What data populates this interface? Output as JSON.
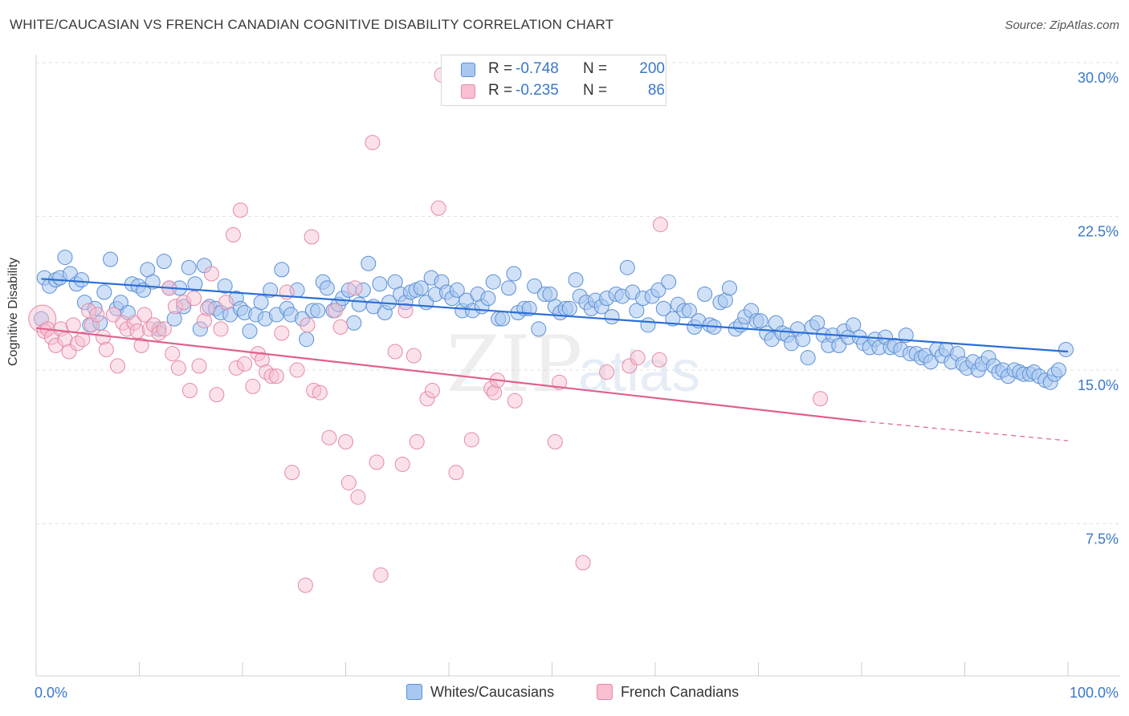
{
  "title": "WHITE/CAUCASIAN VS FRENCH CANADIAN COGNITIVE DISABILITY CORRELATION CHART",
  "source": "Source: ZipAtlas.com",
  "watermark": {
    "zip": "ZIP",
    "atlas": "atlas"
  },
  "legend": {
    "r_label": "R =",
    "n_label": "N =",
    "series": [
      {
        "name": "Whites/Caucasians",
        "r": "-0.748",
        "n": "200",
        "fill": "#a9c8f0",
        "stroke": "#5b8fd6",
        "line": "#2a6fd6"
      },
      {
        "name": "French Canadians",
        "r": "-0.235",
        "n": "86",
        "fill": "#f7bfd0",
        "stroke": "#e58aa6",
        "line": "#e0608e"
      }
    ]
  },
  "chart_data": {
    "type": "scatter",
    "title": "WHITE/CAUCASIAN VS FRENCH CANADIAN COGNITIVE DISABILITY CORRELATION CHART",
    "xlabel": "",
    "ylabel": "Cognitive Disability",
    "xlim": [
      0,
      100
    ],
    "ylim": [
      0,
      31
    ],
    "x_tick_labels": [
      "0.0%",
      "100.0%"
    ],
    "y_ticks": [
      7.5,
      15.0,
      22.5,
      30.0
    ],
    "y_tick_labels": [
      "7.5%",
      "15.0%",
      "22.5%",
      "30.0%"
    ],
    "grid": true,
    "legend_position": "top-center",
    "series": [
      {
        "name": "Whites/Caucasians",
        "points": [
          [
            0.5,
            17.5
          ],
          [
            0.8,
            19.5
          ],
          [
            1.3,
            19.1
          ],
          [
            1.9,
            19.4
          ],
          [
            2.3,
            19.5
          ],
          [
            2.8,
            20.5
          ],
          [
            3.3,
            19.7
          ],
          [
            3.9,
            19.2
          ],
          [
            4.4,
            19.4
          ],
          [
            4.7,
            18.3
          ],
          [
            5.2,
            17.2
          ],
          [
            5.7,
            18.0
          ],
          [
            6.2,
            17.3
          ],
          [
            6.6,
            18.8
          ],
          [
            7.2,
            20.4
          ],
          [
            7.8,
            18.0
          ],
          [
            8.2,
            18.3
          ],
          [
            8.9,
            17.8
          ],
          [
            9.3,
            19.2
          ],
          [
            9.9,
            19.1
          ],
          [
            10.4,
            18.9
          ],
          [
            10.8,
            19.9
          ],
          [
            11.3,
            19.3
          ],
          [
            11.9,
            17.0
          ],
          [
            12.4,
            20.3
          ],
          [
            12.9,
            19.0
          ],
          [
            13.4,
            17.5
          ],
          [
            13.9,
            19.0
          ],
          [
            14.3,
            18.1
          ],
          [
            14.8,
            20.0
          ],
          [
            15.4,
            19.2
          ],
          [
            15.9,
            17.0
          ],
          [
            16.3,
            20.1
          ],
          [
            16.8,
            18.1
          ],
          [
            17.4,
            18.0
          ],
          [
            17.9,
            17.8
          ],
          [
            18.3,
            19.1
          ],
          [
            18.8,
            17.7
          ],
          [
            19.4,
            18.5
          ],
          [
            19.8,
            18.0
          ],
          [
            20.2,
            17.8
          ],
          [
            20.7,
            16.9
          ],
          [
            21.3,
            17.7
          ],
          [
            21.8,
            18.3
          ],
          [
            22.2,
            17.5
          ],
          [
            22.7,
            18.9
          ],
          [
            23.3,
            17.7
          ],
          [
            23.8,
            19.9
          ],
          [
            24.3,
            18.0
          ],
          [
            24.7,
            17.7
          ],
          [
            25.3,
            18.9
          ],
          [
            25.8,
            17.5
          ],
          [
            26.2,
            16.5
          ],
          [
            26.8,
            17.9
          ],
          [
            27.3,
            17.9
          ],
          [
            27.8,
            19.3
          ],
          [
            28.2,
            19.0
          ],
          [
            28.8,
            17.9
          ],
          [
            29.3,
            18.2
          ],
          [
            29.7,
            18.5
          ],
          [
            30.3,
            18.9
          ],
          [
            30.8,
            17.3
          ],
          [
            31.3,
            18.2
          ],
          [
            31.7,
            18.9
          ],
          [
            32.2,
            20.2
          ],
          [
            32.7,
            18.1
          ],
          [
            33.3,
            19.2
          ],
          [
            33.8,
            17.8
          ],
          [
            34.2,
            18.3
          ],
          [
            34.8,
            19.3
          ],
          [
            35.3,
            18.7
          ],
          [
            35.8,
            18.3
          ],
          [
            36.3,
            18.8
          ],
          [
            36.8,
            18.9
          ],
          [
            37.3,
            19.0
          ],
          [
            37.8,
            18.3
          ],
          [
            38.3,
            19.5
          ],
          [
            38.7,
            18.7
          ],
          [
            39.3,
            19.3
          ],
          [
            39.8,
            18.8
          ],
          [
            40.3,
            18.5
          ],
          [
            40.8,
            18.9
          ],
          [
            41.3,
            17.9
          ],
          [
            41.7,
            18.4
          ],
          [
            42.3,
            17.9
          ],
          [
            42.8,
            18.7
          ],
          [
            43.2,
            18.1
          ],
          [
            43.8,
            18.5
          ],
          [
            44.3,
            19.3
          ],
          [
            44.8,
            17.5
          ],
          [
            45.2,
            17.5
          ],
          [
            45.8,
            19.0
          ],
          [
            46.3,
            19.7
          ],
          [
            46.7,
            17.8
          ],
          [
            47.3,
            18.0
          ],
          [
            47.8,
            18.0
          ],
          [
            48.3,
            19.1
          ],
          [
            48.7,
            17.0
          ],
          [
            49.3,
            18.7
          ],
          [
            49.8,
            18.7
          ],
          [
            50.3,
            18.1
          ],
          [
            50.8,
            17.8
          ],
          [
            51.3,
            18.0
          ],
          [
            51.7,
            18.0
          ],
          [
            52.3,
            19.4
          ],
          [
            52.7,
            18.6
          ],
          [
            53.3,
            18.3
          ],
          [
            53.8,
            18.0
          ],
          [
            54.2,
            18.4
          ],
          [
            54.8,
            18.1
          ],
          [
            55.3,
            18.5
          ],
          [
            55.8,
            17.6
          ],
          [
            56.2,
            18.7
          ],
          [
            56.8,
            18.6
          ],
          [
            57.3,
            20.0
          ],
          [
            57.8,
            18.8
          ],
          [
            58.2,
            17.9
          ],
          [
            58.8,
            18.5
          ],
          [
            59.3,
            17.2
          ],
          [
            59.7,
            18.6
          ],
          [
            60.3,
            18.9
          ],
          [
            60.8,
            18.0
          ],
          [
            61.3,
            19.3
          ],
          [
            61.7,
            17.5
          ],
          [
            62.2,
            18.2
          ],
          [
            62.8,
            17.9
          ],
          [
            63.3,
            17.9
          ],
          [
            63.8,
            17.1
          ],
          [
            64.2,
            17.4
          ],
          [
            64.8,
            18.7
          ],
          [
            65.3,
            17.2
          ],
          [
            65.7,
            17.1
          ],
          [
            66.3,
            18.3
          ],
          [
            66.8,
            18.4
          ],
          [
            67.2,
            19.0
          ],
          [
            67.8,
            17.0
          ],
          [
            68.3,
            17.2
          ],
          [
            68.7,
            17.6
          ],
          [
            69.3,
            17.9
          ],
          [
            69.8,
            17.4
          ],
          [
            70.2,
            17.4
          ],
          [
            70.8,
            16.8
          ],
          [
            71.3,
            16.5
          ],
          [
            71.7,
            17.3
          ],
          [
            72.3,
            16.8
          ],
          [
            72.8,
            16.7
          ],
          [
            73.2,
            16.3
          ],
          [
            73.8,
            17.0
          ],
          [
            74.3,
            16.5
          ],
          [
            74.8,
            15.6
          ],
          [
            75.2,
            17.1
          ],
          [
            75.7,
            17.3
          ],
          [
            76.3,
            16.7
          ],
          [
            76.8,
            16.2
          ],
          [
            77.2,
            16.7
          ],
          [
            77.8,
            16.2
          ],
          [
            78.3,
            16.9
          ],
          [
            78.7,
            16.6
          ],
          [
            79.2,
            17.2
          ],
          [
            79.8,
            16.6
          ],
          [
            80.2,
            16.3
          ],
          [
            80.8,
            16.1
          ],
          [
            81.3,
            16.5
          ],
          [
            81.7,
            16.1
          ],
          [
            82.3,
            16.6
          ],
          [
            82.8,
            16.1
          ],
          [
            83.2,
            16.2
          ],
          [
            83.8,
            16.0
          ],
          [
            84.3,
            16.7
          ],
          [
            84.7,
            15.8
          ],
          [
            85.3,
            15.8
          ],
          [
            85.8,
            15.6
          ],
          [
            86.2,
            15.7
          ],
          [
            86.7,
            15.4
          ],
          [
            87.3,
            16.0
          ],
          [
            87.8,
            15.7
          ],
          [
            88.2,
            16.0
          ],
          [
            88.7,
            15.4
          ],
          [
            89.3,
            15.8
          ],
          [
            89.8,
            15.3
          ],
          [
            90.2,
            15.1
          ],
          [
            90.8,
            15.4
          ],
          [
            91.3,
            15.0
          ],
          [
            91.7,
            15.3
          ],
          [
            92.3,
            15.6
          ],
          [
            92.8,
            15.2
          ],
          [
            93.3,
            14.9
          ],
          [
            93.7,
            15.0
          ],
          [
            94.2,
            14.7
          ],
          [
            94.8,
            15.0
          ],
          [
            95.3,
            14.9
          ],
          [
            95.7,
            14.8
          ],
          [
            96.3,
            14.8
          ],
          [
            96.7,
            14.9
          ],
          [
            97.2,
            14.7
          ],
          [
            97.8,
            14.5
          ],
          [
            98.3,
            14.4
          ],
          [
            98.7,
            14.8
          ],
          [
            99.1,
            15.0
          ],
          [
            99.8,
            16.0
          ]
        ],
        "trend": {
          "x0": 0.5,
          "y0": 19.45,
          "x1": 100.0,
          "y1": 15.9
        }
      },
      {
        "name": "French Canadians",
        "points": [
          [
            0.6,
            17.5
          ],
          [
            0.8,
            16.9
          ],
          [
            1.1,
            17.0
          ],
          [
            1.5,
            16.6
          ],
          [
            1.9,
            16.2
          ],
          [
            2.4,
            17.0
          ],
          [
            2.8,
            16.5
          ],
          [
            3.2,
            15.9
          ],
          [
            3.6,
            17.2
          ],
          [
            4.0,
            16.3
          ],
          [
            4.5,
            16.5
          ],
          [
            5.1,
            17.9
          ],
          [
            5.4,
            17.2
          ],
          [
            5.9,
            17.7
          ],
          [
            6.5,
            16.6
          ],
          [
            6.8,
            16.0
          ],
          [
            7.5,
            17.7
          ],
          [
            7.9,
            15.2
          ],
          [
            8.4,
            17.3
          ],
          [
            8.8,
            17.0
          ],
          [
            9.5,
            17.3
          ],
          [
            9.8,
            16.9
          ],
          [
            10.2,
            16.2
          ],
          [
            10.5,
            17.7
          ],
          [
            11.0,
            17.0
          ],
          [
            11.4,
            17.2
          ],
          [
            11.9,
            16.8
          ],
          [
            12.4,
            17.0
          ],
          [
            12.9,
            19.0
          ],
          [
            13.2,
            15.8
          ],
          [
            13.5,
            18.1
          ],
          [
            13.8,
            15.1
          ],
          [
            14.3,
            18.3
          ],
          [
            14.9,
            14.0
          ],
          [
            15.3,
            18.5
          ],
          [
            15.8,
            15.2
          ],
          [
            16.3,
            17.4
          ],
          [
            16.6,
            18.0
          ],
          [
            17.0,
            19.7
          ],
          [
            17.5,
            13.8
          ],
          [
            17.9,
            17.0
          ],
          [
            18.4,
            18.3
          ],
          [
            19.1,
            21.6
          ],
          [
            19.4,
            15.1
          ],
          [
            19.8,
            22.8
          ],
          [
            20.2,
            15.3
          ],
          [
            21.0,
            14.2
          ],
          [
            21.5,
            15.8
          ],
          [
            21.9,
            15.5
          ],
          [
            22.3,
            14.9
          ],
          [
            22.8,
            14.7
          ],
          [
            23.3,
            14.7
          ],
          [
            23.8,
            16.8
          ],
          [
            24.3,
            18.8
          ],
          [
            24.8,
            10.0
          ],
          [
            25.3,
            15.0
          ],
          [
            26.1,
            4.5
          ],
          [
            26.3,
            17.2
          ],
          [
            26.7,
            21.5
          ],
          [
            26.9,
            14.0
          ],
          [
            27.5,
            13.9
          ],
          [
            28.4,
            11.7
          ],
          [
            29.0,
            17.9
          ],
          [
            29.5,
            17.1
          ],
          [
            30.0,
            11.5
          ],
          [
            30.3,
            9.5
          ],
          [
            30.9,
            19.0
          ],
          [
            31.2,
            8.8
          ],
          [
            32.6,
            26.1
          ],
          [
            33.0,
            10.5
          ],
          [
            33.4,
            5.0
          ],
          [
            34.8,
            15.9
          ],
          [
            35.5,
            10.4
          ],
          [
            35.8,
            17.9
          ],
          [
            36.6,
            15.7
          ],
          [
            36.9,
            11.5
          ],
          [
            37.9,
            13.6
          ],
          [
            38.4,
            14.0
          ],
          [
            39.0,
            22.9
          ],
          [
            39.3,
            29.4
          ],
          [
            40.7,
            10.0
          ],
          [
            42.2,
            11.6
          ],
          [
            44.1,
            14.1
          ],
          [
            44.4,
            13.9
          ],
          [
            44.7,
            14.5
          ],
          [
            46.4,
            13.5
          ]
        ],
        "extra_points": [
          [
            50.3,
            11.5
          ],
          [
            50.7,
            14.4
          ],
          [
            53.0,
            5.6
          ],
          [
            55.3,
            14.9
          ],
          [
            57.5,
            15.2
          ],
          [
            58.3,
            15.6
          ],
          [
            60.4,
            15.5
          ],
          [
            60.5,
            22.1
          ],
          [
            76.0,
            13.6
          ]
        ],
        "trend": {
          "x0": 0.0,
          "y0": 17.05,
          "x1": 80.0,
          "y1": 12.5
        },
        "trend_dashed": {
          "x0": 80.0,
          "y0": 12.5,
          "x1": 100.0,
          "y1": 11.55
        }
      }
    ]
  }
}
